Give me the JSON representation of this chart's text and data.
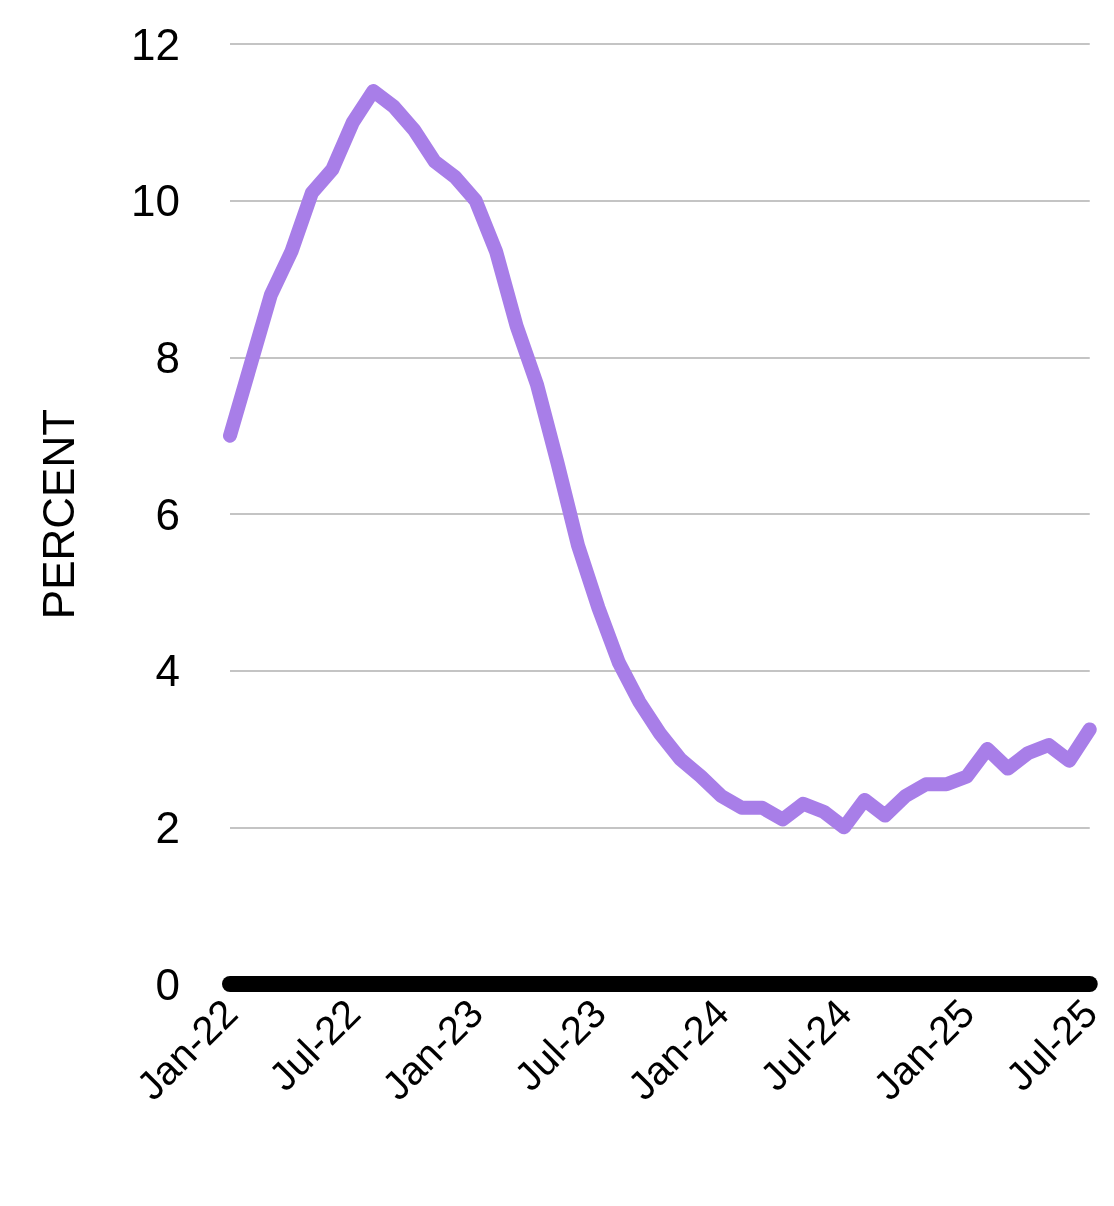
{
  "chart_data": {
    "type": "line",
    "ylabel": "PERCENT",
    "categories": [
      "Jan-22",
      null,
      null,
      null,
      null,
      null,
      "Jul-22",
      null,
      null,
      null,
      null,
      null,
      "Jan-23",
      null,
      null,
      null,
      null,
      null,
      "Jul-23",
      null,
      null,
      null,
      null,
      null,
      "Jan-24",
      null,
      null,
      null,
      null,
      null,
      "Jul-24",
      null,
      null,
      null,
      null,
      null,
      "Jan-25",
      null,
      null,
      null,
      null,
      null,
      "Jul-25"
    ],
    "series": [
      {
        "color": "#a87ee8",
        "values": [
          7.0,
          7.9,
          8.8,
          9.35,
          10.1,
          10.4,
          11.0,
          11.4,
          11.2,
          10.9,
          10.5,
          10.3,
          10.0,
          9.35,
          8.4,
          7.65,
          6.65,
          5.6,
          4.8,
          4.1,
          3.6,
          3.2,
          2.87,
          2.65,
          2.4,
          2.25,
          2.25,
          2.1,
          2.3,
          2.2,
          2.0,
          2.35,
          2.15,
          2.4,
          2.55,
          2.55,
          2.65,
          3.0,
          2.75,
          2.95,
          3.05,
          2.85,
          3.25
        ]
      }
    ],
    "ylim": [
      0,
      12
    ],
    "yticks": [
      0,
      2,
      4,
      6,
      8,
      10,
      12
    ],
    "grid": "y",
    "line_style": "solid"
  }
}
